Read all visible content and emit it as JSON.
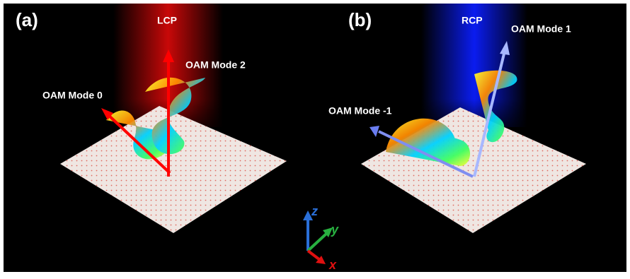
{
  "panels": [
    {
      "label": "(a)",
      "beam": "LCP",
      "modes": [
        "OAM Mode 2",
        "OAM Mode 0"
      ]
    },
    {
      "label": "(b)",
      "beam": "RCP",
      "modes": [
        "OAM Mode 1",
        "OAM Mode -1"
      ]
    }
  ],
  "axes": {
    "z": "z",
    "y": "y",
    "x": "x"
  }
}
